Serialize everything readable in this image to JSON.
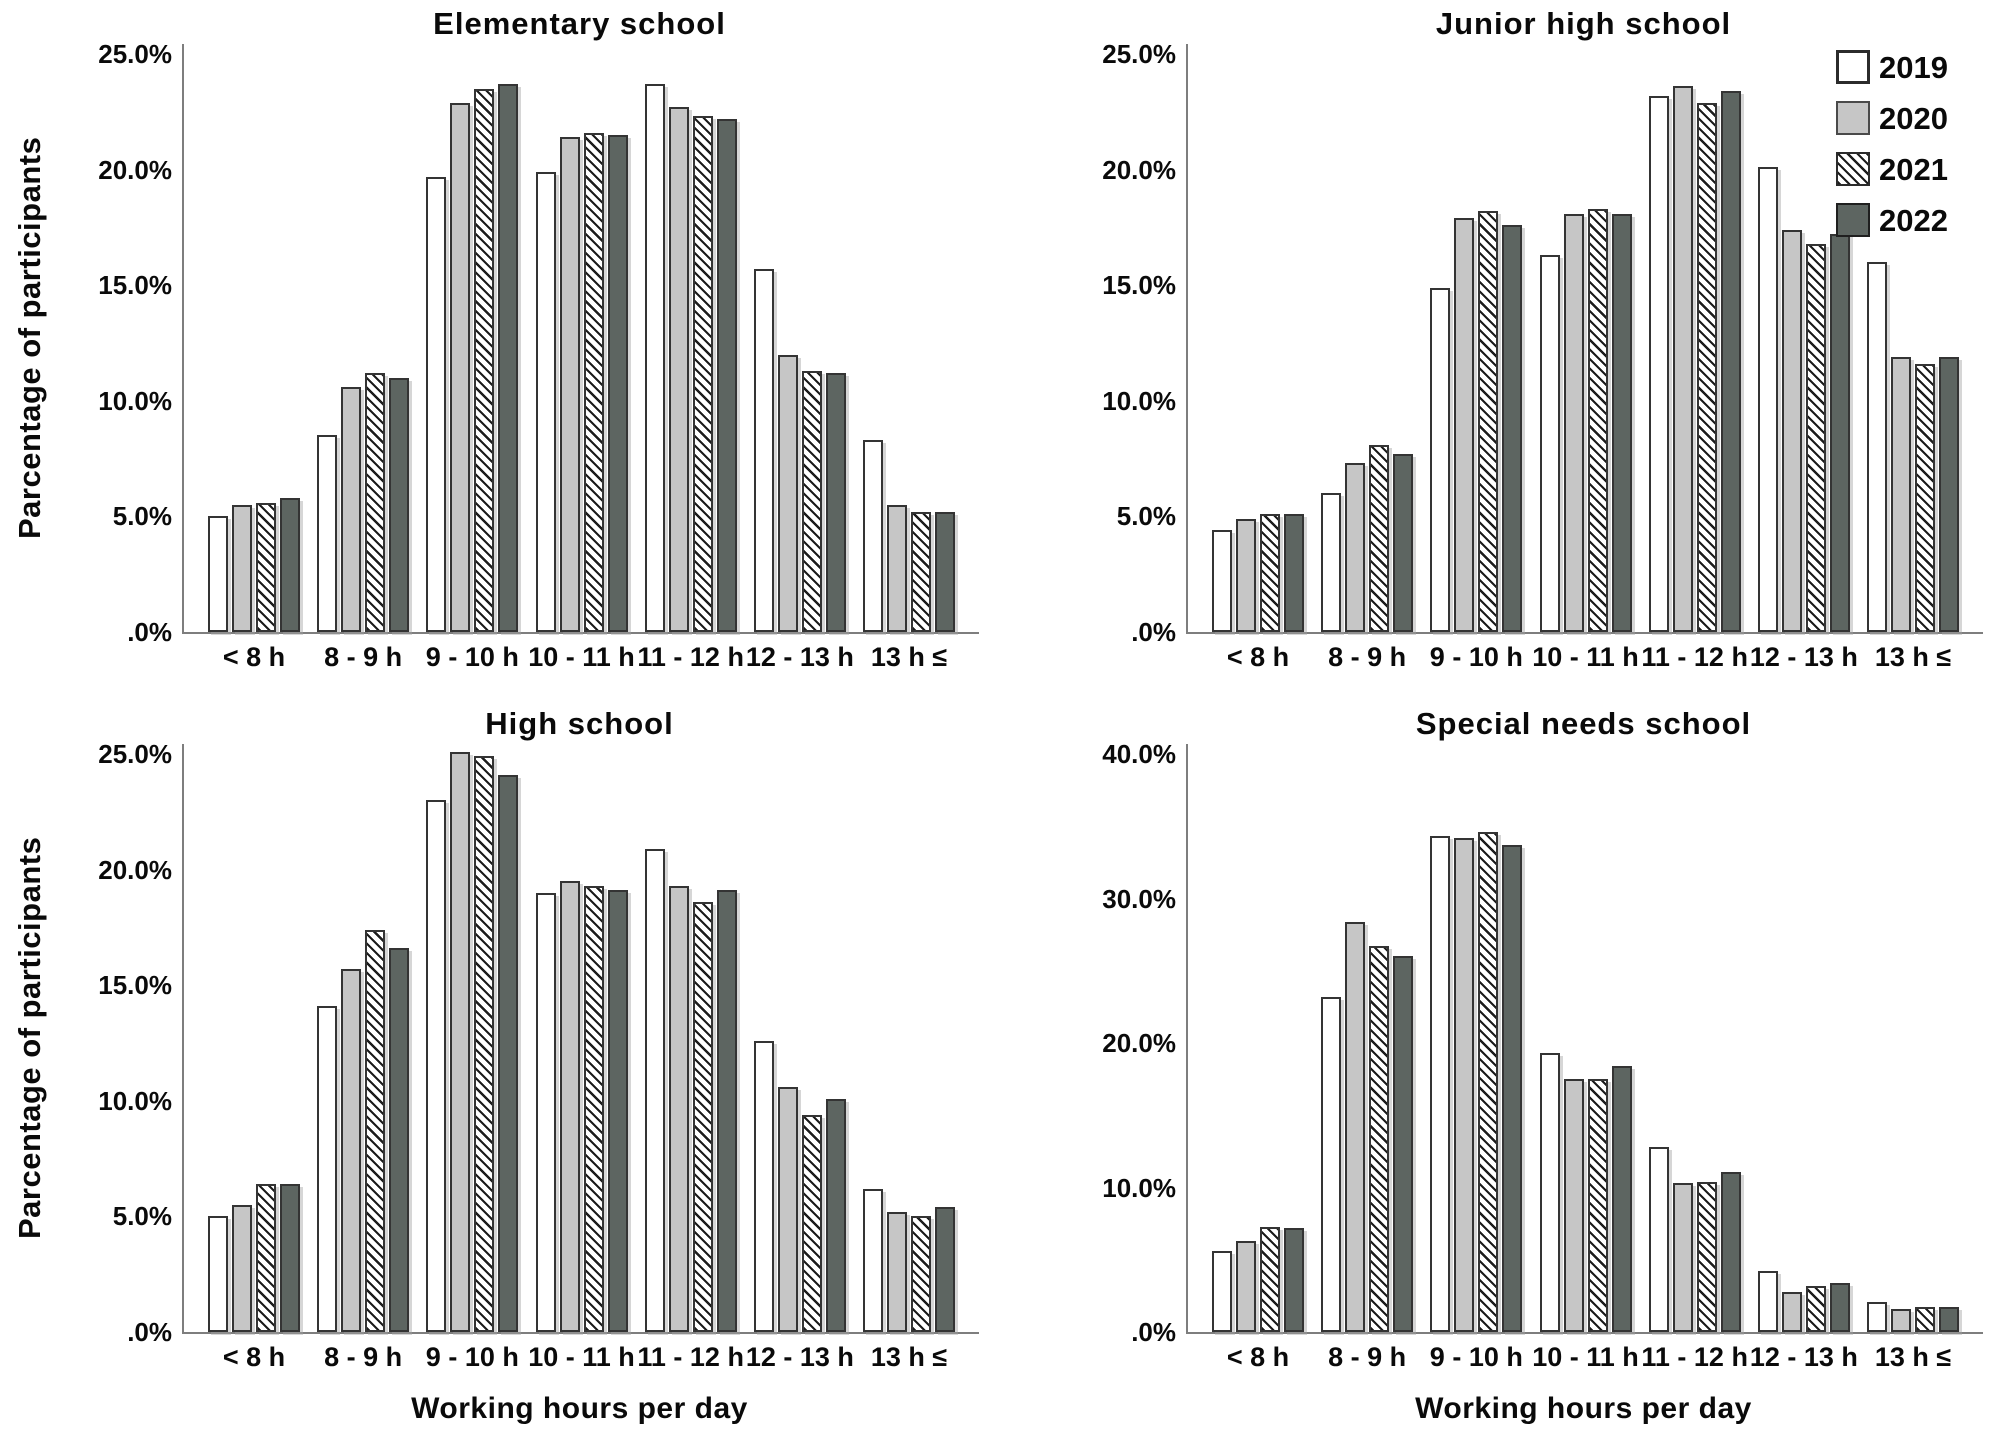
{
  "shared": {
    "y_axis_label": "Parcentage of participants",
    "x_axis_label": "Working hours per day",
    "categories": [
      "< 8 h",
      "8 - 9 h",
      "9 - 10 h",
      "10 - 11 h",
      "11 - 12 h",
      "12 - 13 h",
      "13 h ≤"
    ],
    "legend": [
      {
        "label": "2019",
        "pattern": "solid",
        "fill": "#ffffff"
      },
      {
        "label": "2020",
        "pattern": "solid",
        "fill": "#c6c6c6"
      },
      {
        "label": "2021",
        "pattern": "diagonal-hatch",
        "fill": "#ffffff",
        "hatch_color": "#1c1c1c"
      },
      {
        "label": "2022",
        "pattern": "solid",
        "fill": "#5d6561"
      }
    ],
    "colors": {
      "axis": "#7e7e7e",
      "text": "#0a0a0a",
      "bar_border": "#343434"
    },
    "legend_position": "top-right-of-junior-high-panel",
    "grid": "off"
  },
  "chart_data": [
    {
      "type": "bar",
      "key": "elementary",
      "title": "Elementary school",
      "ylim": [
        0,
        25.5
      ],
      "yticks": [
        {
          "value": 0,
          "label": ".0%"
        },
        {
          "value": 5,
          "label": "5.0%"
        },
        {
          "value": 10,
          "label": "10.0%"
        },
        {
          "value": 15,
          "label": "15.0%"
        },
        {
          "value": 20,
          "label": "20.0%"
        },
        {
          "value": 25,
          "label": "25.0%"
        }
      ],
      "categories": [
        "< 8 h",
        "8 - 9 h",
        "9 - 10 h",
        "10 - 11 h",
        "11 - 12 h",
        "12 - 13 h",
        "13 h ≤"
      ],
      "series": [
        {
          "name": "2019",
          "values": [
            5.0,
            8.5,
            19.7,
            19.9,
            23.7,
            15.7,
            8.3
          ]
        },
        {
          "name": "2020",
          "values": [
            5.5,
            10.6,
            22.9,
            21.4,
            22.7,
            12.0,
            5.5
          ]
        },
        {
          "name": "2021",
          "values": [
            5.6,
            11.2,
            23.5,
            21.6,
            22.3,
            11.3,
            5.2
          ]
        },
        {
          "name": "2022",
          "values": [
            5.8,
            11.0,
            23.7,
            21.5,
            22.2,
            11.2,
            5.2
          ]
        }
      ]
    },
    {
      "type": "bar",
      "key": "junior-high",
      "title": "Junior high school",
      "ylim": [
        0,
        25.5
      ],
      "yticks": [
        {
          "value": 0,
          "label": ".0%"
        },
        {
          "value": 5,
          "label": "5.0%"
        },
        {
          "value": 10,
          "label": "10.0%"
        },
        {
          "value": 15,
          "label": "15.0%"
        },
        {
          "value": 20,
          "label": "20.0%"
        },
        {
          "value": 25,
          "label": "25.0%"
        }
      ],
      "categories": [
        "< 8 h",
        "8 - 9 h",
        "9 - 10 h",
        "10 - 11 h",
        "11 - 12 h",
        "12 - 13 h",
        "13 h ≤"
      ],
      "series": [
        {
          "name": "2019",
          "values": [
            4.4,
            6.0,
            14.9,
            16.3,
            23.2,
            20.1,
            16.0
          ]
        },
        {
          "name": "2020",
          "values": [
            4.9,
            7.3,
            17.9,
            18.1,
            23.6,
            17.4,
            11.9
          ]
        },
        {
          "name": "2021",
          "values": [
            5.1,
            8.1,
            18.2,
            18.3,
            22.9,
            16.8,
            11.6
          ]
        },
        {
          "name": "2022",
          "values": [
            5.1,
            7.7,
            17.6,
            18.1,
            23.4,
            17.2,
            11.9
          ]
        }
      ]
    },
    {
      "type": "bar",
      "key": "high-school",
      "title": "High school",
      "ylim": [
        0,
        25.5
      ],
      "yticks": [
        {
          "value": 0,
          "label": ".0%"
        },
        {
          "value": 5,
          "label": "5.0%"
        },
        {
          "value": 10,
          "label": "10.0%"
        },
        {
          "value": 15,
          "label": "15.0%"
        },
        {
          "value": 20,
          "label": "20.0%"
        },
        {
          "value": 25,
          "label": "25.0%"
        }
      ],
      "categories": [
        "< 8 h",
        "8 - 9 h",
        "9 - 10 h",
        "10 - 11 h",
        "11 - 12 h",
        "12 - 13 h",
        "13 h ≤"
      ],
      "series": [
        {
          "name": "2019",
          "values": [
            5.0,
            14.1,
            23.0,
            19.0,
            20.9,
            12.6,
            6.2
          ]
        },
        {
          "name": "2020",
          "values": [
            5.5,
            15.7,
            25.1,
            19.5,
            19.3,
            10.6,
            5.2
          ]
        },
        {
          "name": "2021",
          "values": [
            6.4,
            17.4,
            24.9,
            19.3,
            18.6,
            9.4,
            5.0
          ]
        },
        {
          "name": "2022",
          "values": [
            6.4,
            16.6,
            24.1,
            19.1,
            19.1,
            10.1,
            5.4
          ]
        }
      ]
    },
    {
      "type": "bar",
      "key": "special-needs",
      "title": "Special needs school",
      "ylim": [
        0,
        40.8
      ],
      "yticks": [
        {
          "value": 0,
          "label": ".0%"
        },
        {
          "value": 10,
          "label": "10.0%"
        },
        {
          "value": 20,
          "label": "20.0%"
        },
        {
          "value": 30,
          "label": "30.0%"
        },
        {
          "value": 40,
          "label": "40.0%"
        }
      ],
      "categories": [
        "< 8 h",
        "8 - 9 h",
        "9 - 10 h",
        "10 - 11 h",
        "11 - 12 h",
        "12 - 13 h",
        "13 h ≤"
      ],
      "series": [
        {
          "name": "2019",
          "values": [
            5.6,
            23.2,
            34.3,
            19.3,
            12.8,
            4.2,
            2.1
          ]
        },
        {
          "name": "2020",
          "values": [
            6.3,
            28.4,
            34.2,
            17.5,
            10.3,
            2.8,
            1.6
          ]
        },
        {
          "name": "2021",
          "values": [
            7.3,
            26.7,
            34.6,
            17.5,
            10.4,
            3.2,
            1.7
          ]
        },
        {
          "name": "2022",
          "values": [
            7.2,
            26.0,
            33.7,
            18.4,
            11.1,
            3.4,
            1.7
          ]
        }
      ]
    }
  ]
}
